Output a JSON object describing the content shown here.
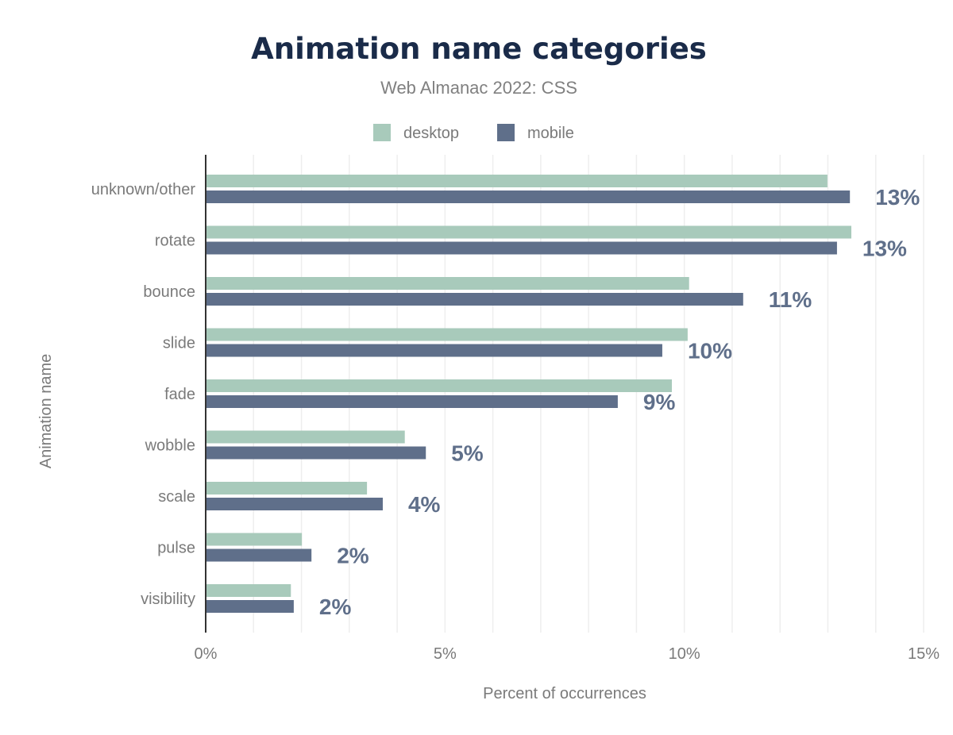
{
  "chart_data": {
    "type": "bar",
    "orientation": "horizontal",
    "title": "Animation name categories",
    "subtitle": "Web Almanac 2022: CSS",
    "xlabel": "Percent of occurrences",
    "ylabel": "Animation name",
    "xlim": [
      0,
      15
    ],
    "x_ticks": [
      "0%",
      "5%",
      "10%",
      "15%"
    ],
    "grid": true,
    "legend": "top",
    "categories": [
      "unknown/other",
      "rotate",
      "bounce",
      "slide",
      "fade",
      "wobble",
      "scale",
      "pulse",
      "visibility"
    ],
    "series": [
      {
        "name": "desktop",
        "color": "#a8cabb",
        "values": [
          12.99,
          13.49,
          10.1,
          10.07,
          9.74,
          4.16,
          3.37,
          2.01,
          1.78
        ]
      },
      {
        "name": "mobile",
        "color": "#5f6f8a",
        "values": [
          13.46,
          13.19,
          11.23,
          9.54,
          8.61,
          4.6,
          3.7,
          2.21,
          1.84
        ]
      }
    ],
    "data_labels": [
      "13%",
      "13%",
      "11%",
      "10%",
      "9%",
      "5%",
      "4%",
      "2%",
      "2%"
    ]
  }
}
